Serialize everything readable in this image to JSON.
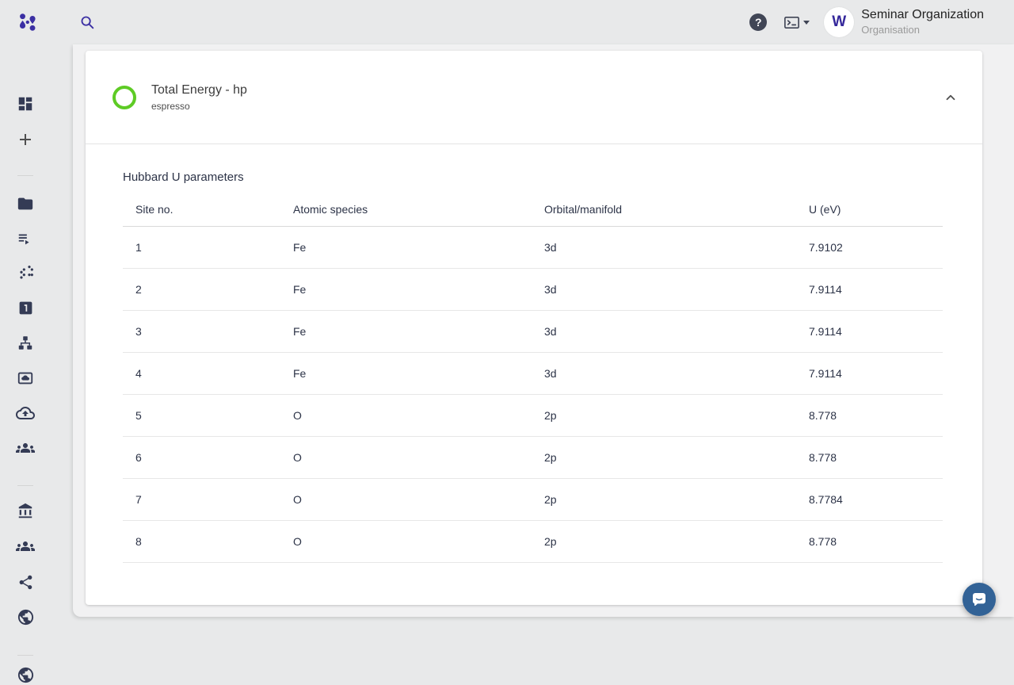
{
  "topbar": {
    "icons": [
      "molecule-logo-icon",
      "search-icon",
      "help-icon",
      "terminal-icon",
      "caret-down-icon"
    ],
    "help_glyph": "?",
    "user": {
      "avatar_letter": "W",
      "org_name": "Seminar Organization",
      "org_type": "Organisation"
    }
  },
  "sidebar": {
    "items": [
      {
        "icon": "dashboard"
      },
      {
        "icon": "add"
      },
      {
        "icon": "divider"
      },
      {
        "icon": "folder"
      },
      {
        "icon": "playlist"
      },
      {
        "icon": "dots-cluster"
      },
      {
        "icon": "number-one"
      },
      {
        "icon": "hierarchy"
      },
      {
        "icon": "cloud-box"
      },
      {
        "icon": "cloud-upload"
      },
      {
        "icon": "people-group"
      },
      {
        "icon": "divider"
      },
      {
        "icon": "bank"
      },
      {
        "icon": "people-group"
      },
      {
        "icon": "share"
      },
      {
        "icon": "globe"
      },
      {
        "icon": "divider"
      },
      {
        "icon": "globe"
      }
    ]
  },
  "card": {
    "header": {
      "title": "Total Energy - hp",
      "subtitle": "espresso",
      "status_color": "#5ecb25",
      "collapse_icon": "chevron-up-icon"
    },
    "section_title": "Hubbard U parameters",
    "table": {
      "columns": [
        "Site no.",
        "Atomic species",
        "Orbital/manifold",
        "U (eV)"
      ],
      "rows": [
        [
          "1",
          "Fe",
          "3d",
          "7.9102"
        ],
        [
          "2",
          "Fe",
          "3d",
          "7.9114"
        ],
        [
          "3",
          "Fe",
          "3d",
          "7.9114"
        ],
        [
          "4",
          "Fe",
          "3d",
          "7.9114"
        ],
        [
          "5",
          "O",
          "2p",
          "8.778"
        ],
        [
          "6",
          "O",
          "2p",
          "8.778"
        ],
        [
          "7",
          "O",
          "2p",
          "8.7784"
        ],
        [
          "8",
          "O",
          "2p",
          "8.778"
        ]
      ]
    }
  },
  "chat": {
    "icon": "chat-bubble-icon"
  },
  "colors": {
    "accent_purple": "#3b2fa3",
    "status_green": "#5ecb25",
    "chat_blue": "#326296",
    "icon_navy": "#343b55",
    "text_navy": "#2c3347",
    "page_bg": "#e8e9ea",
    "panel_bg": "#f1f1f2"
  }
}
